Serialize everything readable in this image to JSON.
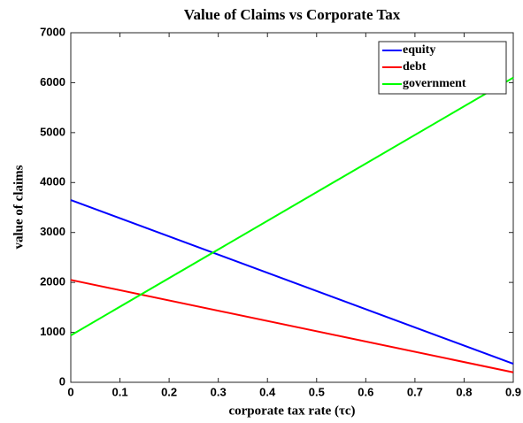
{
  "chart_data": {
    "type": "line",
    "title": "Value of Claims vs Corporate Tax",
    "xlabel": "corporate tax rate (τc)",
    "ylabel": "value of claims",
    "x": [
      0,
      0.9
    ],
    "series": [
      {
        "name": "equity",
        "color": "#0000ff",
        "values": [
          3650,
          370
        ]
      },
      {
        "name": "debt",
        "color": "#ff0000",
        "values": [
          2050,
          200
        ]
      },
      {
        "name": "government",
        "color": "#00ff00",
        "values": [
          940,
          6100
        ]
      }
    ],
    "xlim": [
      0,
      0.9
    ],
    "xticks": [
      0,
      0.1,
      0.2,
      0.3,
      0.4,
      0.5,
      0.6,
      0.7,
      0.8,
      0.9
    ],
    "ylim": [
      0,
      7000
    ],
    "yticks": [
      0,
      1000,
      2000,
      3000,
      4000,
      5000,
      6000,
      7000
    ],
    "grid": false,
    "legend": "upper right"
  }
}
